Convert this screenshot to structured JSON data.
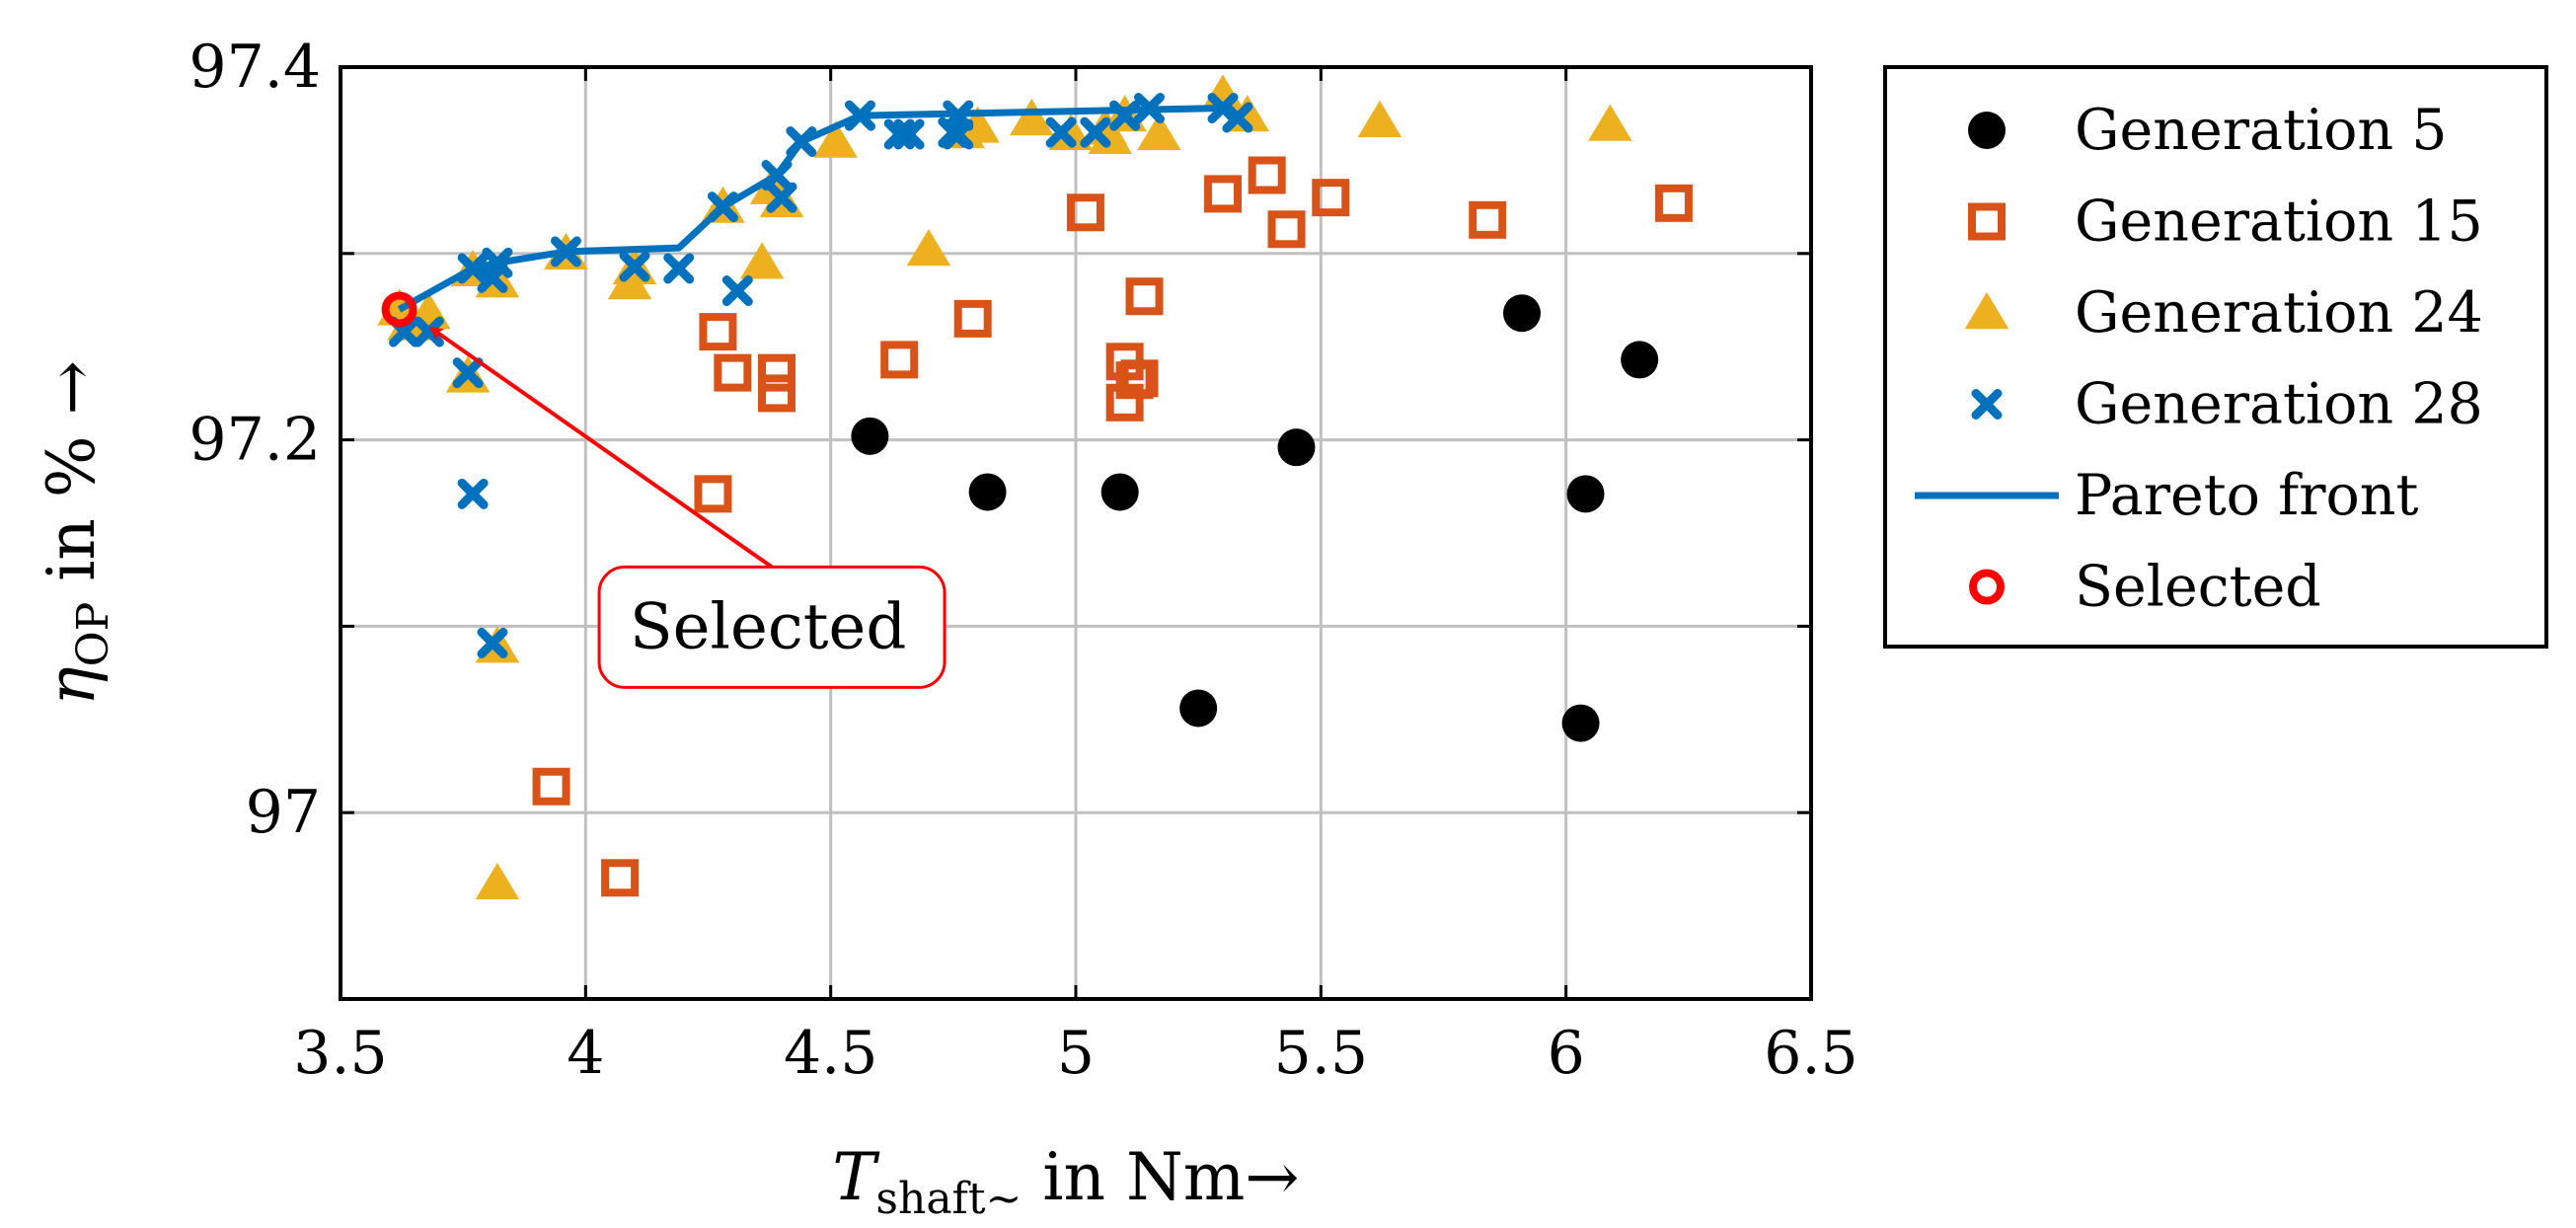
{
  "chart_data": {
    "type": "scatter",
    "xlabel": {
      "main": "T",
      "sub": "shaft∼",
      "rest": " in Nm→"
    },
    "ylabel": {
      "main": "η",
      "sub": "OP",
      "rest": " in % →"
    },
    "xlim": [
      3.5,
      6.5
    ],
    "ylim": [
      96.9,
      97.4
    ],
    "xticks": [
      3.5,
      4,
      4.5,
      5,
      5.5,
      6,
      6.5
    ],
    "xtick_labels": [
      "3.5",
      "4",
      "4.5",
      "5",
      "5.5",
      "6",
      "6.5"
    ],
    "yticks": [
      97.0,
      97.2,
      97.4
    ],
    "ytick_labels": [
      "97",
      "97.2",
      "97.4"
    ],
    "ygrid": [
      97.0,
      97.1,
      97.2,
      97.3,
      97.4
    ],
    "grid": true,
    "legend_position": "outside-right",
    "series": [
      {
        "name": "Generation 5",
        "marker": "circle",
        "color": "#000000",
        "points": [
          [
            4.58,
            97.202
          ],
          [
            4.82,
            97.172
          ],
          [
            5.09,
            97.172
          ],
          [
            5.25,
            97.056
          ],
          [
            5.45,
            97.196
          ],
          [
            5.91,
            97.268
          ],
          [
            6.03,
            97.048
          ],
          [
            6.04,
            97.171
          ],
          [
            6.15,
            97.243
          ]
        ]
      },
      {
        "name": "Generation 15",
        "marker": "square",
        "color": "#d95319",
        "points": [
          [
            3.93,
            97.014
          ],
          [
            4.07,
            96.965
          ],
          [
            4.26,
            97.171
          ],
          [
            4.27,
            97.258
          ],
          [
            4.3,
            97.236
          ],
          [
            4.39,
            97.236
          ],
          [
            4.39,
            97.225
          ],
          [
            4.64,
            97.243
          ],
          [
            4.79,
            97.265
          ],
          [
            5.02,
            97.322
          ],
          [
            5.1,
            97.242
          ],
          [
            5.1,
            97.22
          ],
          [
            5.12,
            97.232
          ],
          [
            5.13,
            97.233
          ],
          [
            5.14,
            97.277
          ],
          [
            5.3,
            97.332
          ],
          [
            5.39,
            97.342
          ],
          [
            5.43,
            97.313
          ],
          [
            5.52,
            97.33
          ],
          [
            5.84,
            97.318
          ],
          [
            6.22,
            97.327
          ]
        ]
      },
      {
        "name": "Generation 24",
        "marker": "triangle",
        "color": "#edb120",
        "points": [
          [
            3.62,
            97.27
          ],
          [
            3.64,
            97.262
          ],
          [
            3.68,
            97.268
          ],
          [
            3.76,
            97.234
          ],
          [
            3.77,
            97.291
          ],
          [
            3.82,
            97.089
          ],
          [
            3.82,
            96.962
          ],
          [
            3.82,
            97.285
          ],
          [
            3.96,
            97.3
          ],
          [
            4.09,
            97.284
          ],
          [
            4.1,
            97.292
          ],
          [
            4.28,
            97.325
          ],
          [
            4.36,
            97.295
          ],
          [
            4.38,
            97.335
          ],
          [
            4.4,
            97.328
          ],
          [
            4.51,
            97.36
          ],
          [
            4.7,
            97.302
          ],
          [
            4.77,
            97.365
          ],
          [
            4.8,
            97.368
          ],
          [
            4.91,
            97.372
          ],
          [
            4.99,
            97.364
          ],
          [
            5.06,
            97.367
          ],
          [
            5.07,
            97.362
          ],
          [
            5.1,
            97.374
          ],
          [
            5.17,
            97.364
          ],
          [
            5.3,
            97.385
          ],
          [
            5.35,
            97.374
          ],
          [
            5.62,
            97.371
          ],
          [
            6.09,
            97.369
          ]
        ]
      },
      {
        "name": "Generation 28",
        "marker": "x",
        "color": "#0072bd",
        "points": [
          [
            3.63,
            97.258
          ],
          [
            3.68,
            97.258
          ],
          [
            3.76,
            97.236
          ],
          [
            3.77,
            97.171
          ],
          [
            3.77,
            97.292
          ],
          [
            3.81,
            97.287
          ],
          [
            3.81,
            97.091
          ],
          [
            3.82,
            97.295
          ],
          [
            3.96,
            97.301
          ],
          [
            4.1,
            97.293
          ],
          [
            4.19,
            97.292
          ],
          [
            4.28,
            97.325
          ],
          [
            4.31,
            97.28
          ],
          [
            4.39,
            97.342
          ],
          [
            4.4,
            97.33
          ],
          [
            4.44,
            97.36
          ],
          [
            4.56,
            97.374
          ],
          [
            4.64,
            97.364
          ],
          [
            4.66,
            97.364
          ],
          [
            4.75,
            97.365
          ],
          [
            4.76,
            97.374
          ],
          [
            4.76,
            97.364
          ],
          [
            4.97,
            97.365
          ],
          [
            5.04,
            97.365
          ],
          [
            5.1,
            97.374
          ],
          [
            5.15,
            97.378
          ],
          [
            5.3,
            97.378
          ],
          [
            5.33,
            97.373
          ]
        ]
      }
    ],
    "pareto_front": {
      "name": "Pareto front",
      "color": "#0072bd",
      "points": [
        [
          3.62,
          97.27
        ],
        [
          3.77,
          97.292
        ],
        [
          3.82,
          97.295
        ],
        [
          3.96,
          97.301
        ],
        [
          4.19,
          97.303
        ],
        [
          4.28,
          97.325
        ],
        [
          4.39,
          97.342
        ],
        [
          4.44,
          97.36
        ],
        [
          4.56,
          97.374
        ],
        [
          5.3,
          97.378
        ],
        [
          5.33,
          97.373
        ]
      ]
    },
    "selected": {
      "name": "Selected",
      "color": "#ff0000",
      "point": [
        3.62,
        97.27
      ]
    },
    "annotation": {
      "text": "Selected",
      "target": [
        3.67,
        97.265
      ],
      "anchor": [
        4.38,
        97.1
      ]
    }
  }
}
